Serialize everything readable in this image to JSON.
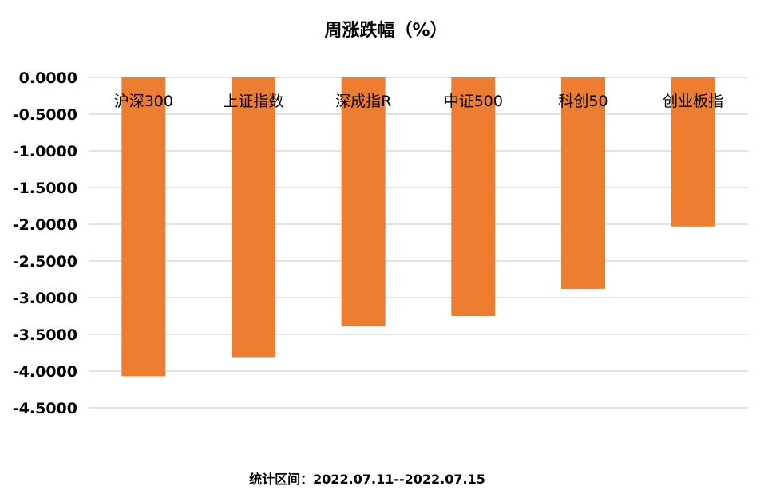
{
  "chart_data": {
    "type": "bar",
    "title": "周涨跌幅（%）",
    "footer": "统计区间：2022.07.11--2022.07.15",
    "categories": [
      "沪深300",
      "上证指数",
      "深成指R",
      "中证500",
      "科创50",
      "创业板指"
    ],
    "values": [
      -4.07,
      -3.81,
      -3.39,
      -3.25,
      -2.88,
      -2.03
    ],
    "yticks": [
      0,
      -0.5,
      -1,
      -1.5,
      -2,
      -2.5,
      -3,
      -3.5,
      -4,
      -4.5
    ],
    "ytick_labels": [
      "0.0000",
      "-0.5000",
      "-1.0000",
      "-1.5000",
      "-2.0000",
      "-2.5000",
      "-3.0000",
      "-3.5000",
      "-4.0000",
      "-4.5000"
    ],
    "ylim": [
      -4.5,
      0
    ],
    "xlabel": "",
    "ylabel": "",
    "grid": true,
    "legend": "none",
    "colors": {
      "bar": "#ED7D31",
      "grid": "#D9D9D9",
      "text": "#000000"
    }
  }
}
